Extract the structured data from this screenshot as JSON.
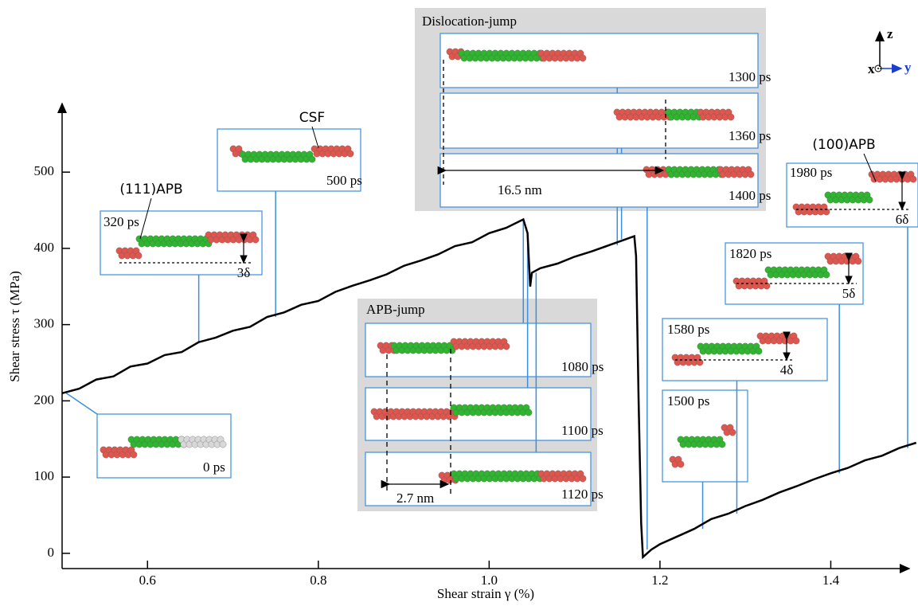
{
  "chart_data": {
    "type": "line",
    "xlabel": "Shear strain γ (%)",
    "ylabel": "Shear stress τ  (MPa)",
    "color": "#000000",
    "x": [
      0.5,
      0.52,
      0.54,
      0.56,
      0.58,
      0.6,
      0.62,
      0.64,
      0.66,
      0.68,
      0.7,
      0.72,
      0.74,
      0.76,
      0.78,
      0.8,
      0.82,
      0.84,
      0.86,
      0.88,
      0.9,
      0.92,
      0.94,
      0.96,
      0.98,
      1.0,
      1.02,
      1.04,
      1.045,
      1.048,
      1.05,
      1.06,
      1.08,
      1.1,
      1.12,
      1.14,
      1.16,
      1.17,
      1.172,
      1.175,
      1.178,
      1.18,
      1.19,
      1.2,
      1.22,
      1.24,
      1.26,
      1.28,
      1.3,
      1.32,
      1.34,
      1.36,
      1.38,
      1.4,
      1.42,
      1.44,
      1.46,
      1.48,
      1.5
    ],
    "values": [
      210,
      216,
      228,
      232,
      245,
      249,
      260,
      264,
      277,
      283,
      292,
      297,
      310,
      316,
      326,
      331,
      343,
      351,
      358,
      366,
      377,
      384,
      392,
      403,
      408,
      420,
      427,
      438,
      420,
      350,
      368,
      374,
      380,
      389,
      396,
      404,
      412,
      416,
      390,
      200,
      40,
      -5,
      5,
      12,
      22,
      32,
      45,
      52,
      62,
      70,
      80,
      88,
      97,
      105,
      112,
      122,
      128,
      138,
      145
    ],
    "xlim": [
      0.5,
      1.49
    ],
    "ylim": [
      -20,
      590
    ],
    "xticks": [
      0.6,
      0.8,
      {
        "value": 1.0,
        "label": "1.0"
      },
      1.2,
      1.4
    ],
    "yticks": [
      0,
      100,
      200,
      300,
      400,
      500
    ],
    "snapshots": [
      {
        "time": "0 ps"
      },
      {
        "time": "320 ps",
        "step": "3δ"
      },
      {
        "time": "500 ps"
      },
      {
        "time": "1300 ps"
      },
      {
        "time": "1360 ps"
      },
      {
        "time": "1400 ps"
      },
      {
        "time": "1080 ps"
      },
      {
        "time": "1100 ps"
      },
      {
        "time": "1120 ps"
      },
      {
        "time": "1500 ps"
      },
      {
        "time": "1580 ps",
        "step": "4δ"
      },
      {
        "time": "1820 ps",
        "step": "5δ"
      },
      {
        "time": "1980 ps",
        "step": "6δ"
      }
    ],
    "groups": [
      {
        "title": "Dislocation-jump",
        "distance": "16.5 nm"
      },
      {
        "title": "APB-jump",
        "distance": "2.7 nm"
      }
    ],
    "annotations": [
      "CSF",
      "(111)APB",
      "(100)APB"
    ],
    "axes_glyph": [
      "x",
      "y",
      "z"
    ]
  }
}
